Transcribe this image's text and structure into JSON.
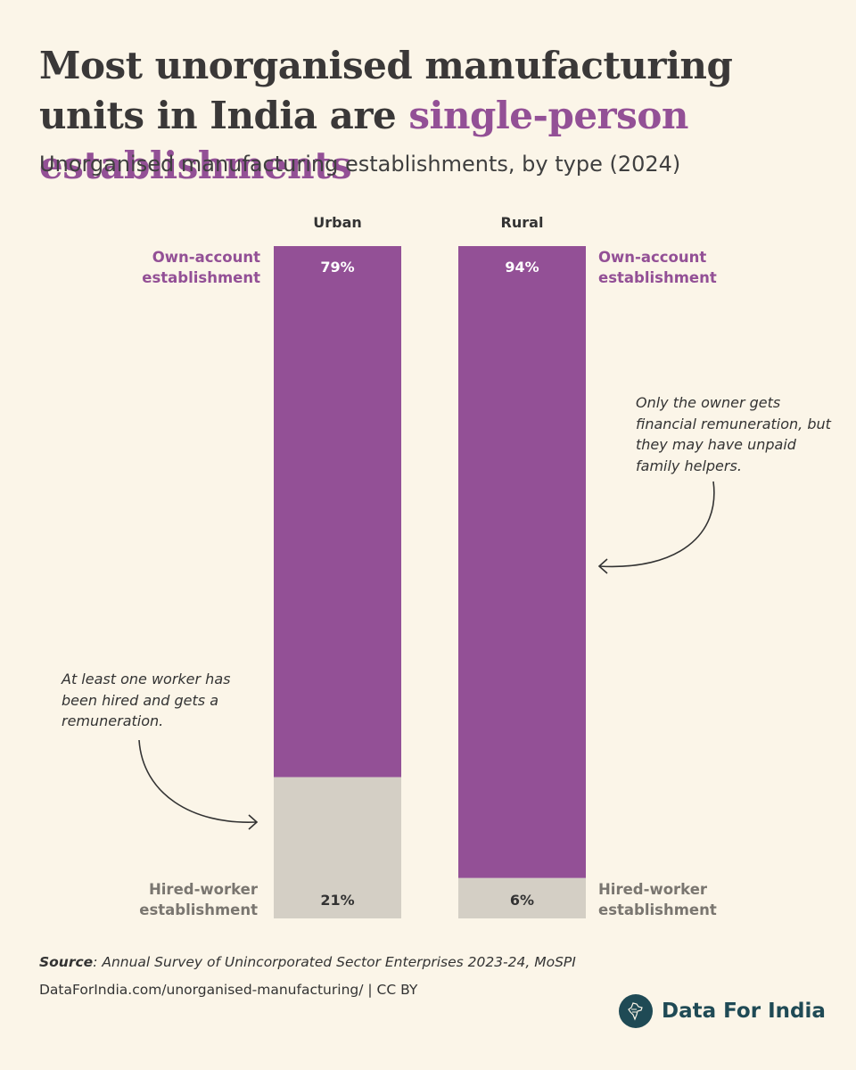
{
  "title": {
    "part1": "Most unorganised manufacturing units in India are ",
    "highlight": "single-person establishments"
  },
  "subtitle": "Unorganised manufacturing establishments, by type (2024)",
  "chart_data": {
    "type": "bar",
    "stacked": true,
    "categories": [
      "Urban",
      "Rural"
    ],
    "series": [
      {
        "name": "Own-account establishment",
        "values": [
          79,
          94
        ],
        "value_labels": [
          "79%",
          "94%"
        ],
        "color": "#935096"
      },
      {
        "name": "Hired-worker establishment",
        "values": [
          21,
          6
        ],
        "value_labels": [
          "21%",
          "6%"
        ],
        "color": "#d4cfc5"
      }
    ],
    "legend_labels": {
      "own_line1": "Own-account",
      "own_line2": "establishment",
      "hired_line1": "Hired-worker",
      "hired_line2": "establishment"
    },
    "ylim": [
      0,
      100
    ]
  },
  "annotations": {
    "hired": "At least one worker has been hired and gets a remuneration.",
    "own": "Only the owner gets financial remuneration, but they may have unpaid family helpers."
  },
  "footer": {
    "source_label": "Source",
    "source_text": ": Annual Survey of Unincorporated Sector Enterprises 2023-24, MoSPI",
    "url": "DataForIndia.com/unorganised-manufacturing/  |  CC BY",
    "brand": "Data For India"
  },
  "colors": {
    "background": "#fbf5e8",
    "own_account": "#935096",
    "hired_worker": "#d4cfc5",
    "brand": "#1f4a55"
  }
}
